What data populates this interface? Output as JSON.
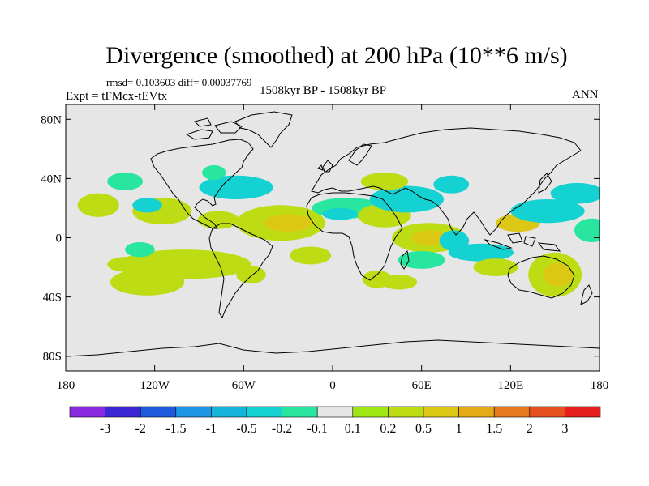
{
  "title": "Divergence (smoothed) at 200 hPa (10**6 m/s)",
  "stats": "rmsd= 0.103603 diff= 0.00037769",
  "experiment": "Expt = tFMcx-tEVtx",
  "period": "1508kyr BP - 1508kyr BP",
  "season": "ANN",
  "map": {
    "lat_range": [
      -90,
      90
    ],
    "lon_range": [
      -180,
      180
    ],
    "lat_ticks": [
      {
        "value": 80,
        "label": "80N"
      },
      {
        "value": 40,
        "label": "40N"
      },
      {
        "value": 0,
        "label": "0"
      },
      {
        "value": -40,
        "label": "40S"
      },
      {
        "value": -80,
        "label": "80S"
      }
    ],
    "lon_ticks": [
      {
        "value": -180,
        "label": "180"
      },
      {
        "value": -120,
        "label": "120W"
      },
      {
        "value": -60,
        "label": "60W"
      },
      {
        "value": 0,
        "label": "0"
      },
      {
        "value": 60,
        "label": "60E"
      },
      {
        "value": 120,
        "label": "120E"
      },
      {
        "value": 180,
        "label": "180"
      }
    ],
    "background_color": "#e6e6e6"
  },
  "colorbar": {
    "colors": [
      "#8a2be2",
      "#3c28d2",
      "#1e5adc",
      "#1e96e6",
      "#14b4dc",
      "#14d2d2",
      "#28e6a0",
      "#e6e6e6",
      "#a0e614",
      "#bedc14",
      "#dcc814",
      "#e6aa14",
      "#e6781e",
      "#e6501e",
      "#e61e1e"
    ],
    "labels": [
      "-3",
      "-2",
      "-1.5",
      "-1",
      "-0.5",
      "-0.2",
      "-0.1",
      "0.1",
      "0.2",
      "0.5",
      "1",
      "1.5",
      "2",
      "3"
    ]
  },
  "contour_blobs": [
    {
      "lon": -158,
      "lat": 22,
      "rx": 14,
      "ry": 8,
      "level": "0.2"
    },
    {
      "lon": -115,
      "lat": 18,
      "rx": 20,
      "ry": 9,
      "level": "0.2"
    },
    {
      "lon": -125,
      "lat": 22,
      "rx": 10,
      "ry": 5,
      "level": "-0.2"
    },
    {
      "lon": -140,
      "lat": 38,
      "rx": 12,
      "ry": 6,
      "level": "-0.1"
    },
    {
      "lon": -65,
      "lat": 34,
      "rx": 25,
      "ry": 8,
      "level": "-0.2"
    },
    {
      "lon": -80,
      "lat": 44,
      "rx": 8,
      "ry": 5,
      "level": "-0.1"
    },
    {
      "lon": -77,
      "lat": 12,
      "rx": 14,
      "ry": 6,
      "level": "0.2"
    },
    {
      "lon": -35,
      "lat": 10,
      "rx": 30,
      "ry": 12,
      "level": "0.2"
    },
    {
      "lon": -30,
      "lat": 10,
      "rx": 16,
      "ry": 6,
      "level": "0.5"
    },
    {
      "lon": -100,
      "lat": -18,
      "rx": 45,
      "ry": 10,
      "level": "0.2"
    },
    {
      "lon": -140,
      "lat": -18,
      "rx": 12,
      "ry": 5,
      "level": "0.2"
    },
    {
      "lon": -125,
      "lat": -30,
      "rx": 25,
      "ry": 9,
      "level": "0.2"
    },
    {
      "lon": -130,
      "lat": -8,
      "rx": 10,
      "ry": 5,
      "level": "-0.1"
    },
    {
      "lon": -55,
      "lat": -25,
      "rx": 10,
      "ry": 6,
      "level": "0.2"
    },
    {
      "lon": -15,
      "lat": -12,
      "rx": 14,
      "ry": 6,
      "level": "0.2"
    },
    {
      "lon": 10,
      "lat": 20,
      "rx": 24,
      "ry": 7,
      "level": "-0.1"
    },
    {
      "lon": 5,
      "lat": 16,
      "rx": 12,
      "ry": 4,
      "level": "-0.2"
    },
    {
      "lon": 35,
      "lat": 15,
      "rx": 18,
      "ry": 8,
      "level": "0.2"
    },
    {
      "lon": 50,
      "lat": 26,
      "rx": 25,
      "ry": 9,
      "level": "-0.2"
    },
    {
      "lon": 35,
      "lat": 38,
      "rx": 16,
      "ry": 6,
      "level": "0.2"
    },
    {
      "lon": 80,
      "lat": 36,
      "rx": 12,
      "ry": 6,
      "level": "-0.2"
    },
    {
      "lon": 65,
      "lat": 0,
      "rx": 25,
      "ry": 10,
      "level": "0.2"
    },
    {
      "lon": 65,
      "lat": 0,
      "rx": 12,
      "ry": 5,
      "level": "0.5"
    },
    {
      "lon": 82,
      "lat": -2,
      "rx": 10,
      "ry": 7,
      "level": "-0.2"
    },
    {
      "lon": 60,
      "lat": -15,
      "rx": 16,
      "ry": 6,
      "level": "-0.1"
    },
    {
      "lon": 100,
      "lat": -10,
      "rx": 22,
      "ry": 6,
      "level": "-0.2"
    },
    {
      "lon": 125,
      "lat": 10,
      "rx": 15,
      "ry": 6,
      "level": "0.5"
    },
    {
      "lon": 145,
      "lat": 18,
      "rx": 25,
      "ry": 8,
      "level": "-0.2"
    },
    {
      "lon": 165,
      "lat": 30,
      "rx": 18,
      "ry": 7,
      "level": "-0.2"
    },
    {
      "lon": 175,
      "lat": 5,
      "rx": 12,
      "ry": 8,
      "level": "-0.1"
    },
    {
      "lon": 110,
      "lat": -20,
      "rx": 15,
      "ry": 6,
      "level": "0.2"
    },
    {
      "lon": 150,
      "lat": -25,
      "rx": 18,
      "ry": 15,
      "level": "0.2"
    },
    {
      "lon": 152,
      "lat": -25,
      "rx": 10,
      "ry": 8,
      "level": "0.5"
    },
    {
      "lon": 30,
      "lat": -28,
      "rx": 10,
      "ry": 6,
      "level": "0.2"
    },
    {
      "lon": 45,
      "lat": -30,
      "rx": 12,
      "ry": 5,
      "level": "0.2"
    }
  ]
}
